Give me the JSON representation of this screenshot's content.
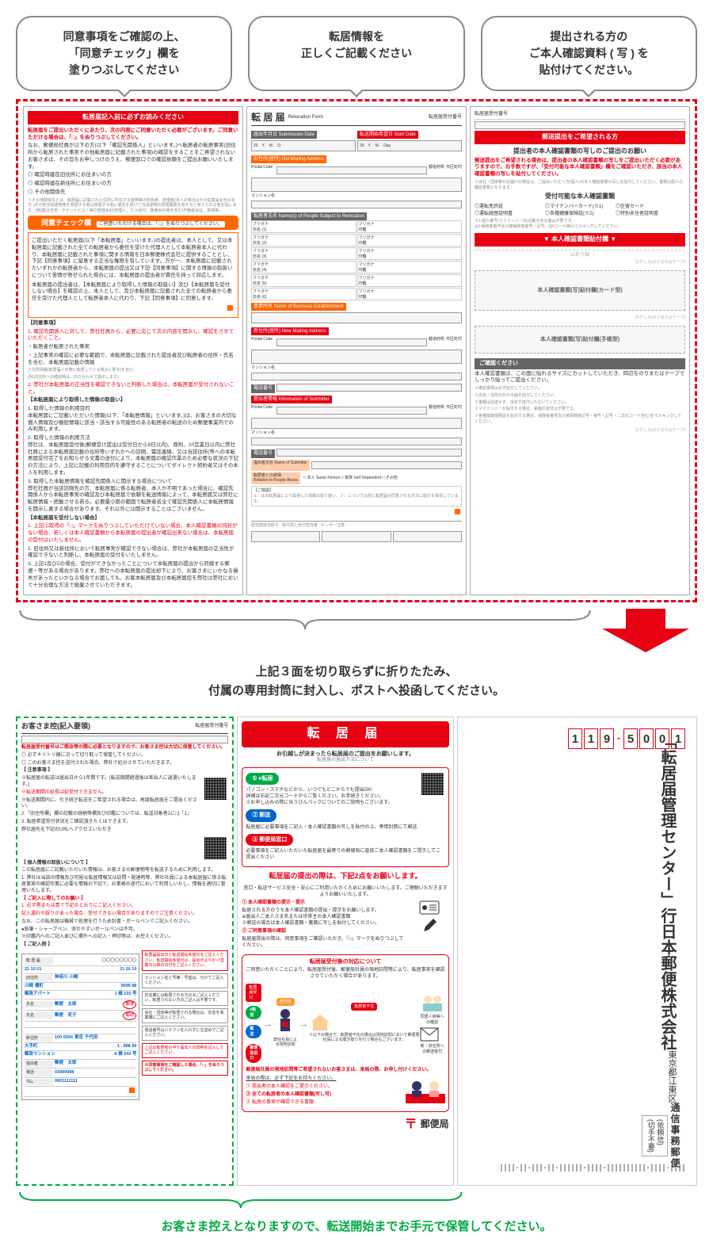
{
  "callouts": [
    "同意事項をご確認の上、\n「同意チェック」欄を\n塗りつぶしてください",
    "転居情報を\n正しくご記載ください",
    "提出される方の\nご本人確認資料 ( 写 ) を\n貼付けてください。"
  ],
  "panel1": {
    "title": "転居届記入前に必ずお読みください",
    "lead_red": "転居届をご提出いただくにあたり、次の内容にご同意いただく必要がございます。ご同意いただける場合は、「□」をぬりつぶしてください。",
    "lead2": "なお、郵便局社員が以下の方(以下「確認先関係人」といいます。)へ転居者の転居事実(旧住所から転居された事実その他転居届に記載された事項)の確認をすることをご希望されないお客さまは、その旨をお申しつけのうえ、郵便窓口での確認依頼をご提出お願いいたします。",
    "bullets1": [
      "確認時建在旧住所にお住まいの方",
      "確認時建在新住所にお住まいの方",
      "その他関係先"
    ],
    "note1": "※その他関係先とは、転居届に記載された住所に所在する建物等の所有者、管理者(法人の場合はその従業員を含みます。)その他当該建物等を管理する者は管理する者に委託を受けて当該建物の管理業務を有すると考えられる者を指します。(例)集合住宅・テナントビル・等の管理会社(管理人、ビル受付、警備会社等を含む)不動産会社、賃貸等。",
    "consent_title": "同意チェック欄",
    "consent_note": "ご同意いただける場合は、「□」をぬりつぶしてください。",
    "consent_body": "ご提出いただく転居届(以下「本転居届」といいます。)の提出者は、本人として、又は本転居届に記載された全ての転居者から委任を受けた代理人として本転居者本人に代わり、本転居届に記載された事項に関する情報を日本郵便株式会社に提供することとし、下記【同意事項】に留意する正当な権限を有しています。万が一、本転居届に記載されたいずれかの転居者から、本転居届の提出又は下記【同意事項】に関する情報の取扱いについて苦情が寄せられた場合には、本転居届の提出者が責任を持って対応します。",
    "consent_body2": "本転居届の提出者は、【本転居届により取得した情報の取扱い】及び【本転居届を受付しない場合】を確認の上、本人として、及び本転居届に記載された全ての転居者から委任を受けた代理人として転居者本人に代わり、下記【同意事項】に同意します。",
    "section_consent": "【同意事項】",
    "consent_items": [
      "確認先関係人に対して、弊社社員から、必要に応じて次の内容を開示し、確認をさせていただくこと。",
      "弊社が本転居届の正当性を確認できないと判断した場合は、本転居届が受付されないこと。"
    ],
    "subitems": [
      "・転居者が転居された事実",
      "・上記事実の確認に必要な範囲で、本転居届に記載された提出者及び転居者の住所・氏名を含む、本転居届記載の情報",
      "※住所情報(転居届人が既に転居している場合に限る)を含む。",
      "(例:旧住所への確認時は、旧方合わせて開示します)"
    ],
    "section_handling": "【本転居届により取得した情報の取扱い】",
    "handling": [
      "1. 取得した情報の利用目的\n本転居届にご記載いただいた情報(以下、「本転居情報」といいます。)は、お客さまの大切な個人情報及び機密情報に該当・該当する可能性のある転居者の転送のため郵便事業内でのみ利用します。",
      "2. 取得した情報の利用方法\n弊社は、本転居届受付後(郵便受け提出は受付日から8日以内)、原則、10営業日以内に弊社社員による本転居届記載の住所等いずれかへの訪問、電話連絡、又は当該住所(等への本転居届受付完了をお知らせる文書の送付により、本転居届の確認作業のため必要な状況の下記の方法により、上記に記載の利用目的を遵守することについてダイレクト契約者又はその本人を利用します。",
      "3. 取得した本転居情報を確認先関係人に開示する場合について\n弊社社員が当該訪問先の方、本転居届に係る転居者、本人か不明であった場合に、確認先関係人から本転居事実の確認及び本転居届で依頼を転送情報によって、本転居届又は弊社に転居情報・把握させる若る。必要最小限の範囲で転居者名全て確認先関係人に本転居情報を開示し異する場合があります。それ以外には開示することはございません。"
    ],
    "section_reject": "【本転居届を受付しない場合】",
    "reject": [
      "上記②取得の「□」マークをぬりつぶしていただけていない場合、本人確認書類の同封がない場合、若しくは本人確認書類から本転居届の提出者が確認出来ない場合は、本転居届の受付はいたしません。",
      "旧住所又は新住所において転居事実が確認できない場合は、弊社が本転居届の正当性が確認できないと判断し、本転居届の受付をいたしません。",
      "上記1及び2の場合、受付ができなかったことについて本転居届の提出から同様する郵便・等がある場合があります。弊社への本転居届の提出却下により、お客さまにいかなる損失があったといかなる場合でお届しても、お客本転居届及び本転居届控を弊社は弊社において十分合理な方法で廃棄させていただきます。"
    ]
  },
  "panel2": {
    "title": "転 居 届",
    "title_en": "Relocation Form",
    "receipt": "転居届受付番号",
    "date_label": "届出年月日 Submission Date",
    "start_label": "転送開始希望日 Start Date",
    "old_addr": "旧住所(居所) Old Mailing Address",
    "mansion": "マンション名",
    "relocating": "転居者氏名 Name(s) of People Subject to Relocation",
    "furigana": "フリガナ",
    "name": "氏名",
    "seal": "印鑑",
    "business": "事業所名 Name of Business Establishment",
    "new_addr": "新住所(居所) New Mailing Address",
    "phone": "電話番号",
    "submitter": "提出者情報 Information of Submitter",
    "submitter_name": "提出者氏名 Name of Submitter",
    "relation": "転居者との続柄",
    "relation_en": "Relation to People Above",
    "relation_opts": "□ 本人 Same Person  □ 家族 Self Dependent  □ その他",
    "postal": "Postal Code",
    "city": "都道府県",
    "ward": "市区町村"
  },
  "panel3": {
    "receipt": "転居届受付番号",
    "title_band": "郵送提出をご希望される方",
    "subtitle": "提出者の本人確認書類の写しのご提出のお願い",
    "red_text": "郵送提出をご希望される場合は、提出者の本人確認書類の写しをご提出いただく必要がありますので、お手数ですが、「受付可能な本人確認書類」欄をご確認いただき、該当の本人確認書類の写しを貼付してください。",
    "note": "※会社・団体等がお届けの場合は、ご提出いただく方(個人)の本人確認書類の写しを貼付してください。書類は個人の確認書類となります。",
    "acceptable": "受付可能な本人確認書類",
    "docs": [
      "◎運転免許証",
      "◎運転経歴証明書",
      "◎マイナンバーカード(※1)",
      "◎各種健康保険証(※2)",
      "◎在留カード",
      "◎特別永住者証明書"
    ],
    "doc_note": "※1:個人番号(マイナンバー)の記載がある面は不要です。\n※2:保険者番号及び被保険者番号・記号、QRコード等はマスキングしてください。",
    "attach_band": "▼ 本人確認書類貼付欄 ▼",
    "fold": "山折り線",
    "glue": "のりしろ(のりまたはテープ)",
    "attach1": "本人確認書類(写)貼付欄(カード型)",
    "attach2": "本人確認書類(写)貼付欄(手帳型)",
    "please": "ご確認ください",
    "please_body": "本人確認書類は、この面に貼れるサイズにカットしていただき、四辺をのりまたはテープでしっかり貼ってご提出ください。",
    "please_items": [
      "※確認書類は必ず貼付してください。",
      "※氏名・住所が分かる面を貼付してください。",
      "※書類は別送せず、当状で送付いただいてください。",
      "※マイナンバーを貼付する場合、裏面の送付は不要です。",
      "※各種健康保険証を貼付する場合、保険者番号及び被保険者記号・番号・記号・二次元コード含む)をマスキングしてください。"
    ]
  },
  "foldnote": "上記３面を切り取らずに折りたたみ、\n付属の専用封筒に封入し、ポストへ投函してください。",
  "b1": {
    "title": "お客さま控(記入要領)",
    "receipt": "転居届受付番号",
    "red1": "転居届受付番号はご照会等の際に必要となりますので、お客さま控は大切に保管してください。",
    "bullets": [
      "◎ 必ずキリトリ線に沿って切り取って保管してください。",
      "◎ このお客さま控を送付された場合、弊社で処分させていただきます。"
    ],
    "caution": "【 注意事項 】",
    "caution_items": [
      "※転居届の転送は届出日から1年間です。(転送期間経過後は差出人に返還いたします。)",
      "※転送期間の延長は延受付できません。",
      "※転送期間内に、引き続き転送をご希望される場合は、再度転居届をご提出ください。",
      "2.「旧住所欄」欄の記載の続柄等欄及び印鑑については、転送対象者1に□)「1」",
      "3. 転居希望受付状況をご確認頂きたくはできます。",
      "  弊社届先を下記のURLへアクセスいただき"
    ],
    "section2": "【 個人情報の取扱いについて 】",
    "priv": "この転居届にご記載いただいた情報は、お客さまの郵便物等を転送するために利用します。",
    "priv_items": [
      "1. 弊社は当該の情報及び可能な転居情報又は訪問・配達時等、弊社社員による本転居届に係る転居事実の確認作業に必要な情報の下記で、お業務の遂行において利用しいたし、情報を適切に管理いたします。"
    ],
    "red2": "【 ご記入に際してのお願い 】",
    "red2_items": [
      "1. 必ず黒または青で下記のとおりにご記入ください。",
      "記入漏れや誤りがあった場合、受付できない場合がありますのでご注意ください。",
      "なお、この転居届は機械で処理を行うため封書・ボールペンでご記入ください。",
      "●鉛筆・シャープペン、消せやすいボールペンは不可。",
      "※印鑑内へのご記入並びに欄外への記入・押印等は、お控えください。"
    ],
    "example": "【 ご記入例 】",
    "sample": {
      "title": "転 居 届",
      "receipt_no": "〇〇〇〇〇〇〇〇",
      "date": "21 10 01",
      "start": "21 10 10",
      "old_pref": "神奈川",
      "old_city": "川崎",
      "old_ward": "川崎",
      "old_town": "榎町",
      "old_num": "9999 88",
      "old_mansion": "郵政アパート",
      "old_room": "1 棟 222 号",
      "name1": "郵便　太郎",
      "seal1": "郵便",
      "name2": "郵便　花子",
      "seal2": "郵政",
      "new_zip": "100 0004",
      "new_pref": "東京",
      "new_city": "千代田",
      "new_town": "大手町",
      "new_num": "1 . 888  99",
      "new_mansion": "郵政マンション",
      "new_room": "A 棟 543 号",
      "submitter": "郵便　太郎",
      "phone": "03999988",
      "tel2": "0901111111"
    },
    "side_notes": [
      "転居届提出日と転送開始希望日をご記入ください。転送開始希望日は、提出日より3〜7営業日以降の日付をご記入ください。",
      "マンション名と号棟・号室は、分けてご記入ください。",
      "氏名欄には転居される方のみご記入ください。転居されない方のご記入は不要です。",
      "会社・団体等が転居される場合は、氏名を事業欄にご記入ください。",
      "電話番号はハイフンを入れずに左詰めでご記入ください。",
      "上記の転居者の中で届出人の続柄を記入してご記入ください。",
      "※同意事項をご確認した場合、「□」をぬりつぶしてください。"
    ]
  },
  "b2": {
    "bigtitle": "転 居 届",
    "lead": "お引越しが決まったら転居届のご提出をお願いします。",
    "lead2": "転居届の届出方法について",
    "step1": "① e転居",
    "step1_body": "パソコン・スマホなどから、いつでもどこからでも提出OK!\n詳細は右記二次元コードからご覧ください。お手続きください。\n※お申し込みの際にゆうびんパックについてのご説明もございます。",
    "step2": "② 郵送",
    "step2_body": "転居届に必要事項をご記入・本人確認書類の写しを貼付の上、専用封筒にて郵送",
    "step3": "③ 郵便局窓口",
    "step3_body": "必要事項をご記入いただいた転居届を最寄りの郵便局に直接ご本人確認書類をご提示してご提出ください",
    "subhead1": "転居届の提出の際は、下記2点をお願いします。",
    "sub1_lead": "窓口・転送サービス安全・安心にご利用いただくためにお願いいたします。ご理解いただきますようお願いいたします。",
    "pt1": "① 本人確認書類の提示・提示",
    "pt1_body": "転居される方のうち本人確認書類の提出・提示をお願いします。\n※届出人ご本人さま名または世帯主の本人確認書類\n※郵送の場合は本人確認書類・裏面に写しを貼付してください。",
    "pt2": "② ご同意事項の確認",
    "pt2_body": "転居届提出の際は、同意事項をご確認いただき、「□」マークをぬりつぶしてください。",
    "flowtitle": "転居届受付後の対応について",
    "flow_lead": "ご同意いただくことにより、転居届受付後、郵便局社員の現地訪問等により、転居事実を確認させていただく場合があります。",
    "flow_labels": [
      "転居届受付",
      "受付後",
      "e転居",
      "郵 送",
      "郵便局窓口",
      "転居者不在",
      "転居者不在",
      "弊社社員による現地訪問",
      "同居人様等への確認",
      "新・旧住所への郵送受付",
      "※以下の場合で、転居者不在の場合は現地訪問において郵便局社員による聞き取りを行う場合もございます。"
    ],
    "flow_note": "郵便局社員の現地訪問等ご希望されないお客さまは、来局の際、お申し付けください。",
    "flow_note2": "来局の際は、必ず下記をお持ちください。",
    "flow_reqs": [
      "① 提出者の本人確認をご提示ください。",
      "② 全ての転居者の本人確認書類(写し可)",
      "③ 転居の事実が確認できる書類"
    ],
    "logo": "郵便局"
  },
  "b3": {
    "postcode": [
      "1",
      "1",
      "9",
      "5",
      "0",
      "0",
      "1"
    ],
    "head": "通信事務郵便",
    "stamp": "(依頼信)\n(切手不要)",
    "addr": "東京都江東区",
    "co1": "日本郵便株式会社",
    "co2": "「転居届管理センター」行",
    "barcode": "||||·||·|||·||·||||||·||||·||||||||||·||||·||||"
  },
  "keepnote": "お客さま控えとなりますので、転送開始までお手元で保管してください。",
  "colors": {
    "red": "#e60012",
    "orange": "#ff6600",
    "green": "#00aa44",
    "blue": "#0066cc"
  }
}
